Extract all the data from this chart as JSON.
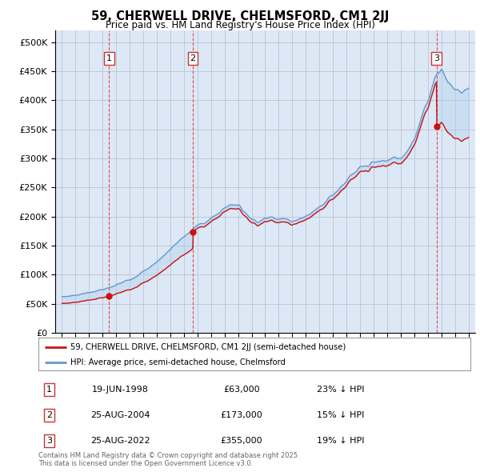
{
  "title": "59, CHERWELL DRIVE, CHELMSFORD, CM1 2JJ",
  "subtitle": "Price paid vs. HM Land Registry's House Price Index (HPI)",
  "background_color": "#ffffff",
  "plot_bg_color": "#dce8f5",
  "grid_color": "#bbbbcc",
  "ylim": [
    0,
    520000
  ],
  "yticks": [
    0,
    50000,
    100000,
    150000,
    200000,
    250000,
    300000,
    350000,
    400000,
    450000,
    500000
  ],
  "ytick_labels": [
    "£0",
    "£50K",
    "£100K",
    "£150K",
    "£200K",
    "£250K",
    "£300K",
    "£350K",
    "£400K",
    "£450K",
    "£500K"
  ],
  "hpi_color": "#6699cc",
  "sale_color": "#cc1111",
  "sale_points": [
    {
      "year": 1998.47,
      "price": 63000,
      "label": "1",
      "date": "19-JUN-1998",
      "pct": "23%"
    },
    {
      "year": 2004.65,
      "price": 173000,
      "label": "2",
      "date": "25-AUG-2004",
      "pct": "15%"
    },
    {
      "year": 2022.65,
      "price": 355000,
      "label": "3",
      "date": "25-AUG-2022",
      "pct": "19%"
    }
  ],
  "vline_color": "#dd3333",
  "legend_label_sale": "59, CHERWELL DRIVE, CHELMSFORD, CM1 2JJ (semi-detached house)",
  "legend_label_hpi": "HPI: Average price, semi-detached house, Chelmsford",
  "footnote": "Contains HM Land Registry data © Crown copyright and database right 2025.\nThis data is licensed under the Open Government Licence v3.0.",
  "xlim_start": 1994.5,
  "xlim_end": 2025.5,
  "hpi_years": [
    1995.0,
    1995.5,
    1996.0,
    1996.5,
    1997.0,
    1997.5,
    1998.0,
    1998.5,
    1999.0,
    1999.5,
    2000.0,
    2000.5,
    2001.0,
    2001.5,
    2002.0,
    2002.5,
    2003.0,
    2003.5,
    2004.0,
    2004.5,
    2005.0,
    2005.5,
    2006.0,
    2006.5,
    2007.0,
    2007.5,
    2008.0,
    2008.5,
    2009.0,
    2009.5,
    2010.0,
    2010.5,
    2011.0,
    2011.5,
    2012.0,
    2012.5,
    2013.0,
    2013.5,
    2014.0,
    2014.5,
    2015.0,
    2015.5,
    2016.0,
    2016.5,
    2017.0,
    2017.5,
    2018.0,
    2018.5,
    2019.0,
    2019.5,
    2020.0,
    2020.5,
    2021.0,
    2021.5,
    2022.0,
    2022.5,
    2023.0,
    2023.5,
    2024.0,
    2024.5,
    2025.0
  ],
  "hpi_vals": [
    62000,
    63000,
    65000,
    67000,
    69000,
    72000,
    74000,
    77000,
    82000,
    87000,
    92000,
    98000,
    105000,
    113000,
    122000,
    133000,
    144000,
    155000,
    165000,
    175000,
    185000,
    190000,
    196000,
    205000,
    215000,
    222000,
    220000,
    208000,
    196000,
    192000,
    196000,
    200000,
    198000,
    195000,
    193000,
    196000,
    200000,
    208000,
    218000,
    228000,
    238000,
    250000,
    262000,
    272000,
    282000,
    288000,
    292000,
    295000,
    297000,
    300000,
    302000,
    315000,
    335000,
    365000,
    400000,
    440000,
    455000,
    430000,
    420000,
    415000,
    420000
  ]
}
